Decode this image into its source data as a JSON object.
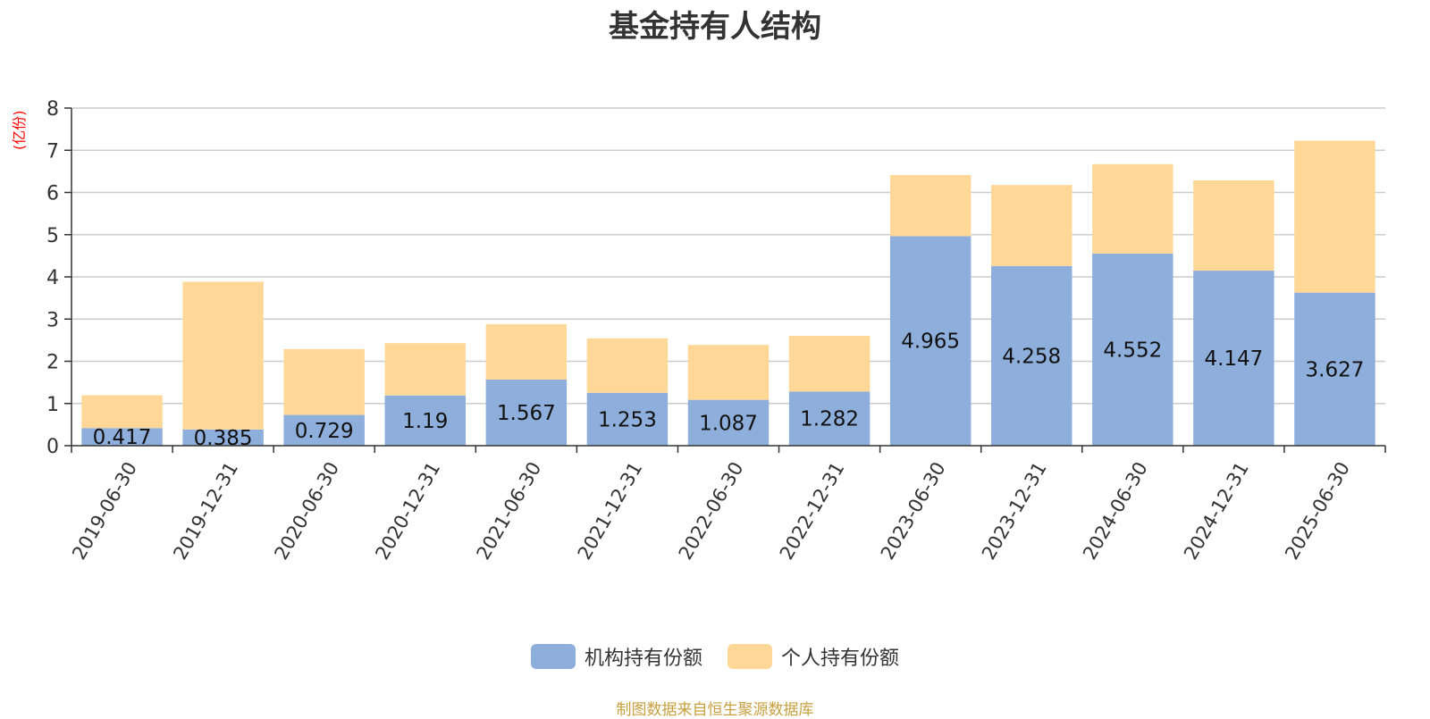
{
  "title": "基金持有人结构",
  "unit": "(亿份)",
  "source": "制图数据来自恒生聚源数据库",
  "colors": {
    "institutional": "#8eaedb",
    "individual": "#ffd898",
    "grid": "#cccccc",
    "axis": "#333333"
  },
  "legend": [
    "机构持有份额",
    "个人持有份额"
  ],
  "chart_data": {
    "type": "bar",
    "stacked": true,
    "categories": [
      "2019-06-30",
      "2019-12-31",
      "2020-06-30",
      "2020-12-31",
      "2021-06-30",
      "2021-12-31",
      "2022-06-30",
      "2022-12-31",
      "2023-06-30",
      "2023-12-31",
      "2024-06-30",
      "2024-12-31",
      "2025-06-30"
    ],
    "series": [
      {
        "name": "机构持有份额",
        "values": [
          0.417,
          0.385,
          0.729,
          1.19,
          1.567,
          1.253,
          1.087,
          1.282,
          4.965,
          4.258,
          4.552,
          4.147,
          3.627
        ]
      },
      {
        "name": "个人持有份额",
        "values": [
          0.78,
          3.5,
          1.56,
          1.24,
          1.31,
          1.29,
          1.3,
          1.32,
          1.45,
          1.92,
          2.12,
          2.14,
          3.6
        ]
      }
    ],
    "data_labels": [
      "0.417",
      "0.385",
      "0.729",
      "1.19",
      "1.567",
      "1.253",
      "1.087",
      "1.282",
      "4.965",
      "4.258",
      "4.552",
      "4.147",
      "3.627"
    ],
    "ylim": [
      0,
      8
    ],
    "yticks": [
      0,
      1,
      2,
      3,
      4,
      5,
      6,
      7,
      8
    ],
    "grid": true,
    "legend_position": "bottom"
  }
}
